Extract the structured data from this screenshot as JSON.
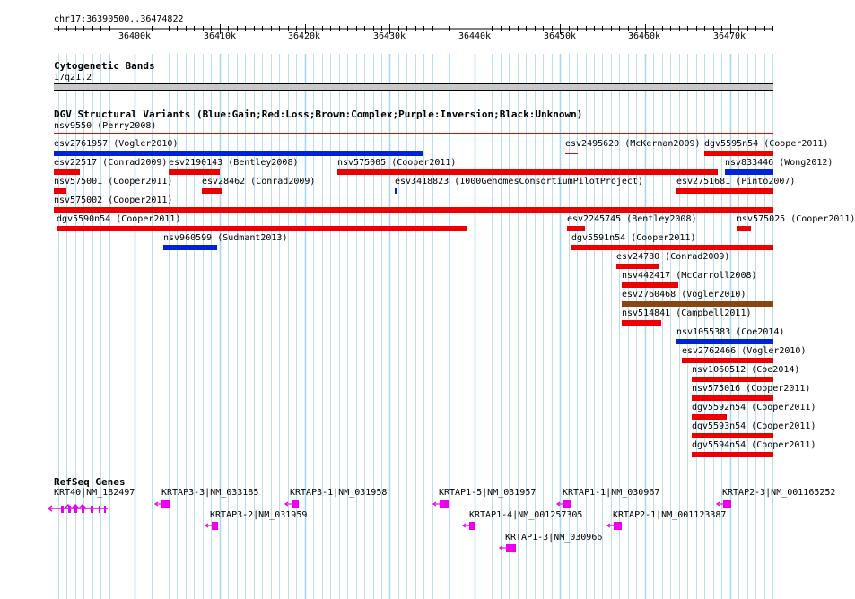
{
  "colors": {
    "gain": "#0022dd",
    "loss": "#ee0000",
    "complex": "#8b4513",
    "gene": "#ee00ee",
    "grid": "#a8d8ec",
    "axis": "#000000",
    "band": "#c8c8c8"
  },
  "region": {
    "label": "chr17:36390500..36474822",
    "start": 36390500,
    "end": 36474822
  },
  "ruler": {
    "ticks": [
      "36400k",
      "36410k",
      "36420k",
      "36430k",
      "36440k",
      "36450k",
      "36460k",
      "36470k"
    ]
  },
  "cyto": {
    "title": "Cytogenetic Bands",
    "band": "17q21.2"
  },
  "dgv": {
    "title": "DGV Structural Variants (Blue:Gain;Red:Loss;Brown:Complex;Purple:Inversion;Black:Unknown)",
    "header_item": "nsv9550 (Perry2008)",
    "variants": [
      {
        "label": "esv2761957 (Vogler2010)",
        "type": "gain",
        "row": 0
      },
      {
        "label": "esv2495620 (McKernan2009)",
        "type": "loss",
        "row": 0
      },
      {
        "label": "dgv5595n54 (Cooper2011)",
        "type": "loss",
        "row": 0
      },
      {
        "label": "esv22517 (Conrad2009)",
        "type": "loss",
        "row": 1
      },
      {
        "label": "esv2190143 (Bentley2008)",
        "type": "loss",
        "row": 1
      },
      {
        "label": "nsv575005 (Cooper2011)",
        "type": "loss",
        "row": 1
      },
      {
        "label": "nsv833446 (Wong2012)",
        "type": "gain",
        "row": 1
      },
      {
        "label": "nsv575001 (Cooper2011)",
        "type": "loss",
        "row": 2
      },
      {
        "label": "esv28462 (Conrad2009)",
        "type": "loss",
        "row": 2
      },
      {
        "label": "esv3418823 (1000GenomesConsortiumPilotProject)",
        "type": "gain",
        "row": 2
      },
      {
        "label": "esv2751681 (Pinto2007)",
        "type": "loss",
        "row": 2
      },
      {
        "label": "nsv575002 (Cooper2011)",
        "type": "loss",
        "row": 3
      },
      {
        "label": "dgv5590n54 (Cooper2011)",
        "type": "loss",
        "row": 4
      },
      {
        "label": "esv2245745 (Bentley2008)",
        "type": "loss",
        "row": 4
      },
      {
        "label": "nsv575025 (Cooper2011)",
        "type": "loss",
        "row": 4
      },
      {
        "label": "nsv960599 (Sudmant2013)",
        "type": "gain",
        "row": 5
      },
      {
        "label": "dgv5591n54 (Cooper2011)",
        "type": "loss",
        "row": 5
      },
      {
        "label": "esv24780 (Conrad2009)",
        "type": "loss",
        "row": 6
      },
      {
        "label": "nsv442417 (McCarroll2008)",
        "type": "loss",
        "row": 7
      },
      {
        "label": "esv2760468 (Vogler2010)",
        "type": "complex",
        "row": 8
      },
      {
        "label": "nsv514841 (Campbell2011)",
        "type": "loss",
        "row": 9
      },
      {
        "label": "nsv1055383 (Coe2014)",
        "type": "gain",
        "row": 10
      },
      {
        "label": "esv2762466 (Vogler2010)",
        "type": "loss",
        "row": 11
      },
      {
        "label": "nsv1060512 (Coe2014)",
        "type": "loss",
        "row": 12
      },
      {
        "label": "nsv575016 (Cooper2011)",
        "type": "loss",
        "row": 13
      },
      {
        "label": "dgv5592n54 (Cooper2011)",
        "type": "loss",
        "row": 14
      },
      {
        "label": "dgv5593n54 (Cooper2011)",
        "type": "loss",
        "row": 15
      },
      {
        "label": "dgv5594n54 (Cooper2011)",
        "type": "loss",
        "row": 16
      }
    ]
  },
  "refseq": {
    "title": "RefSeq Genes",
    "genes": [
      {
        "label": "KRT40|NM_182497"
      },
      {
        "label": "KRTAP3-3|NM_033185"
      },
      {
        "label": "KRTAP3-1|NM_031958"
      },
      {
        "label": "KRTAP1-5|NM_031957"
      },
      {
        "label": "KRTAP1-1|NM_030967"
      },
      {
        "label": "KRTAP2-3|NM_001165252"
      },
      {
        "label": "KRTAP3-2|NM_031959"
      },
      {
        "label": "KRTAP1-4|NM_001257305"
      },
      {
        "label": "KRTAP2-1|NM_001123387"
      },
      {
        "label": "KRTAP1-3|NM_030966"
      }
    ]
  }
}
